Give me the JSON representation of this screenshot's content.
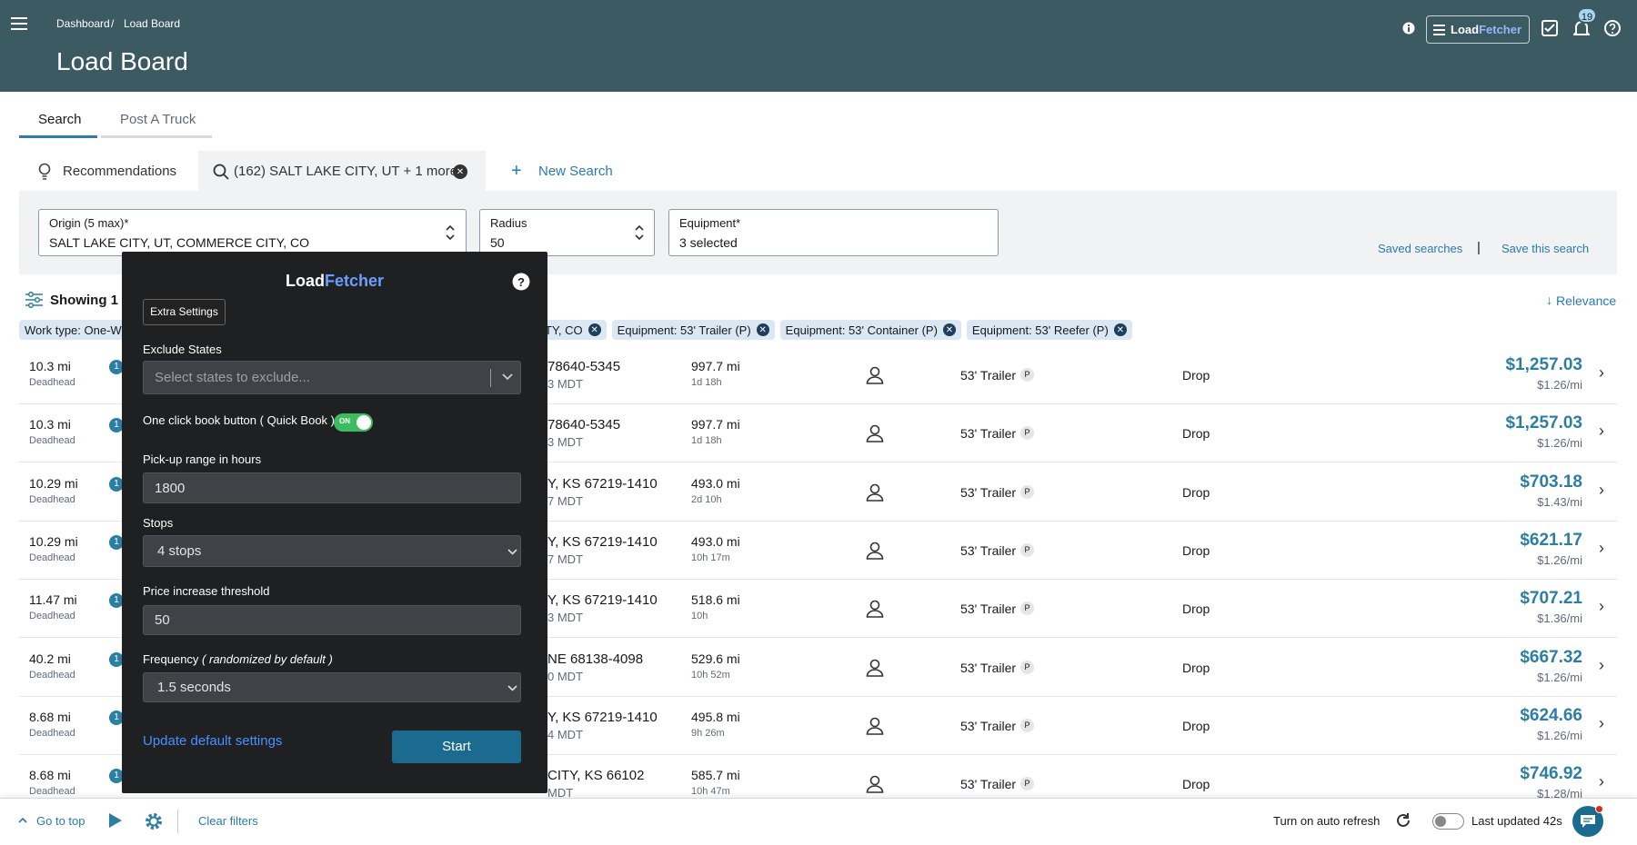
{
  "header": {
    "breadcrumb": [
      "Dashboard",
      "Load Board"
    ],
    "breadcrumb_separator": "/",
    "title": "Load Board",
    "brand": [
      "Load",
      "Fetcher"
    ],
    "notification_count": "19"
  },
  "tabs": [
    "Search",
    "Post A Truck"
  ],
  "search_tabs": {
    "recommendations": "Recommendations",
    "active": "(162) SALT LAKE CITY, UT + 1 more",
    "new": "New Search"
  },
  "filters": {
    "origin_label": "Origin (5 max)*",
    "origin_value": "SALT LAKE CITY, UT, COMMERCE CITY, CO",
    "radius_label": "Radius",
    "radius_value": "50",
    "equipment_label": "Equipment*",
    "equipment_value": "3 selected",
    "saved": "Saved searches",
    "separator": "|",
    "save": "Save this search"
  },
  "results": {
    "showing": "Showing 1 -",
    "sort": "Relevance",
    "chip_work": "Work type: One-W",
    "chips": [
      "CITY, CO",
      "Equipment: 53' Trailer (P)",
      "Equipment: 53' Container (P)",
      "Equipment: 53' Reefer (P)"
    ]
  },
  "rows": [
    {
      "deadhead": "10.3 mi",
      "deadhead_label": "Deadhead",
      "badge": "1",
      "destination": "78640-5345",
      "time": "3 MDT",
      "distance": "997.7 mi",
      "duration": "1d 18h",
      "equipment": "53' Trailer",
      "tag": "P",
      "type": "Drop",
      "price": "$1,257.03",
      "rate": "$1.26/mi"
    },
    {
      "deadhead": "10.3 mi",
      "deadhead_label": "Deadhead",
      "badge": "1",
      "destination": "78640-5345",
      "time": "3 MDT",
      "distance": "997.7 mi",
      "duration": "1d 18h",
      "equipment": "53' Trailer",
      "tag": "P",
      "type": "Drop",
      "price": "$1,257.03",
      "rate": "$1.26/mi"
    },
    {
      "deadhead": "10.29 mi",
      "deadhead_label": "Deadhead",
      "badge": "1",
      "destination": "Y, KS 67219-1410",
      "time": "7 MDT",
      "distance": "493.0 mi",
      "duration": "2d 10h",
      "equipment": "53' Trailer",
      "tag": "P",
      "type": "Drop",
      "price": "$703.18",
      "rate": "$1.43/mi"
    },
    {
      "deadhead": "10.29 mi",
      "deadhead_label": "Deadhead",
      "badge": "1",
      "destination": "Y, KS 67219-1410",
      "time": "7 MDT",
      "distance": "493.0 mi",
      "duration": "10h 17m",
      "equipment": "53' Trailer",
      "tag": "P",
      "type": "Drop",
      "price": "$621.17",
      "rate": "$1.26/mi"
    },
    {
      "deadhead": "11.47 mi",
      "deadhead_label": "Deadhead",
      "badge": "1",
      "destination": "Y, KS 67219-1410",
      "time": "3 MDT",
      "distance": "518.6 mi",
      "duration": "10h",
      "equipment": "53' Trailer",
      "tag": "P",
      "type": "Drop",
      "price": "$707.21",
      "rate": "$1.36/mi"
    },
    {
      "deadhead": "40.2 mi",
      "deadhead_label": "Deadhead",
      "badge": "1",
      "destination": "NE 68138-4098",
      "time": "0 MDT",
      "distance": "529.6 mi",
      "duration": "10h 52m",
      "equipment": "53' Trailer",
      "tag": "P",
      "type": "Drop",
      "price": "$667.32",
      "rate": "$1.26/mi"
    },
    {
      "deadhead": "8.68 mi",
      "deadhead_label": "Deadhead",
      "badge": "1",
      "destination": "Y, KS 67219-1410",
      "time": "4 MDT",
      "distance": "495.8 mi",
      "duration": "9h 26m",
      "equipment": "53' Trailer",
      "tag": "P",
      "type": "Drop",
      "price": "$624.66",
      "rate": "$1.26/mi"
    },
    {
      "deadhead": "8.68 mi",
      "deadhead_label": "Deadhead",
      "badge": "1",
      "destination": "CITY, KS 66102",
      "time": "MDT",
      "distance": "585.7 mi",
      "duration": "10h 47m",
      "equipment": "53' Trailer",
      "tag": "P",
      "type": "Drop",
      "price": "$746.92",
      "rate": "$1.28/mi"
    }
  ],
  "panel": {
    "brand": [
      "Load",
      "Fetcher"
    ],
    "extra": "Extra Settings",
    "exclude_label": "Exclude States",
    "exclude_placeholder": "Select states to exclude...",
    "quick_book_label": "One click book button ( Quick Book )",
    "toggle": "ON",
    "pickup_label": "Pick-up range in hours",
    "pickup_value": "1800",
    "stops_label": "Stops",
    "stops_value": "4 stops",
    "price_label": "Price increase threshold",
    "price_value": "50",
    "frequency_label": "Frequency",
    "frequency_note": "( randomized by default )",
    "frequency_value": "1.5 seconds",
    "update": "Update default settings",
    "start": "Start"
  },
  "footer": {
    "top": "Go to top",
    "clear": "Clear filters",
    "auto_refresh": "Turn on auto refresh",
    "updated": "Last updated 42s"
  }
}
